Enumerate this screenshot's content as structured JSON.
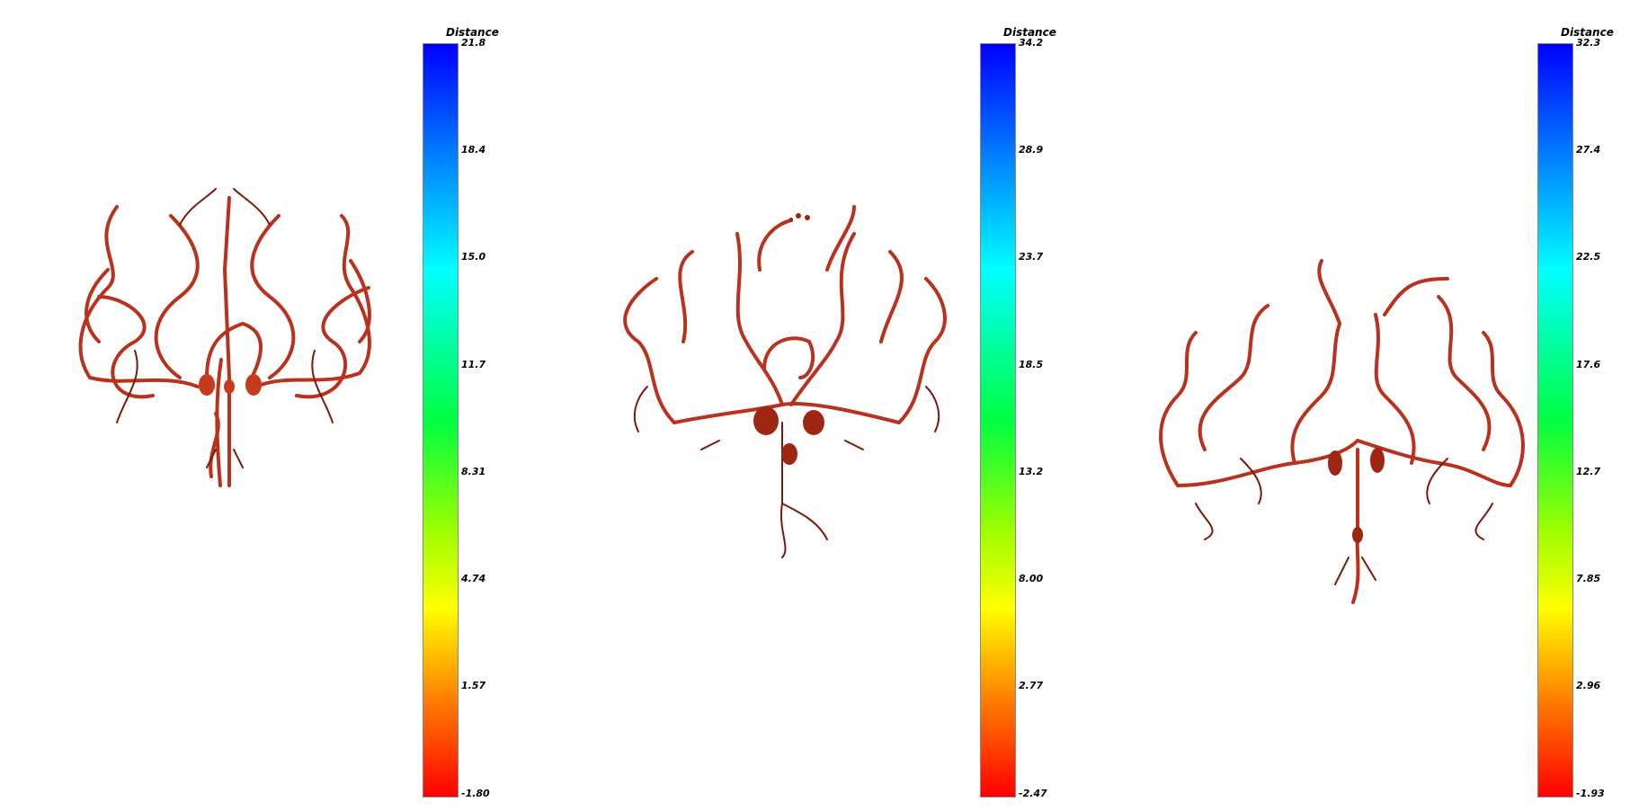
{
  "panels": [
    {
      "colorbar": {
        "title": "Distance",
        "ticks": [
          "21.8",
          "18.4",
          "15.0",
          "11.7",
          "8.31",
          "4.74",
          "1.57",
          "-1.80"
        ],
        "min": -1.8,
        "max": 21.8
      }
    },
    {
      "colorbar": {
        "title": "Distance",
        "ticks": [
          "34.2",
          "28.9",
          "23.7",
          "18.5",
          "13.2",
          "8.00",
          "2.77",
          "-2.47"
        ],
        "min": -2.47,
        "max": 34.2
      }
    },
    {
      "colorbar": {
        "title": "Distance",
        "ticks": [
          "32.3",
          "27.4",
          "22.5",
          "17.6",
          "12.7",
          "7.85",
          "2.96",
          "-1.93"
        ],
        "min": -1.93,
        "max": 32.3
      }
    }
  ],
  "colors": {
    "vessel": "#b8321e",
    "vessel_dark": "#7a1a0c",
    "gradient": [
      "#0000ff",
      "#00ffff",
      "#00ff00",
      "#ffff00",
      "#ff0000"
    ]
  }
}
